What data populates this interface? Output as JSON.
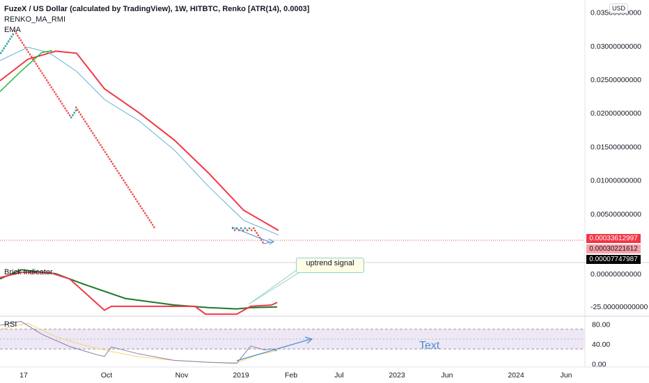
{
  "header": {
    "title": "FuzeX / US Dollar (calculated by TradingView), 1W, HITBTC, Renko [ATR(14), 0.0003]",
    "indicator_1": "RENKO_MA_RMI",
    "indicator_2": "EMA"
  },
  "currency_badge": "USD",
  "price_tags": [
    {
      "text": "0.00033612997",
      "bg": "#f23645",
      "fg": "#ffffff"
    },
    {
      "text": "0.00030221612",
      "bg": "#f7a1a8",
      "fg": "#131722"
    },
    {
      "text": "0.00007747987",
      "bg": "#000000",
      "fg": "#ffffff"
    }
  ],
  "annotations": {
    "callout_text": "uptrend signal",
    "text_note": "Text"
  },
  "panes": {
    "brick": {
      "label": "Brick Indicator"
    },
    "rsi": {
      "label": "RSI"
    }
  },
  "colors": {
    "renko_up": "#26a69a",
    "renko_down": "#ef5350",
    "ma_red": "#f23645",
    "ma_blue": "#5fb3d3",
    "ma_green": "#1db93b",
    "brick_green": "#1b7a2b",
    "brick_red": "#f23645",
    "rsi_purple": "#8c7aa9",
    "rsi_yellow": "#f5d76e",
    "rsi_band": "#ede7f6",
    "arrow": "#4a8fcf"
  },
  "chart_data": [
    {
      "type": "line",
      "name": "main-price",
      "title": "FuzeX / US Dollar (calculated by TradingView), 1W, HITBTC, Renko [ATR(14), 0.0003]",
      "y_ticks": [
        "0.03500000000",
        "0.03000000000",
        "0.02500000000",
        "0.02000000000",
        "0.01500000000",
        "0.01000000000",
        "0.00500000000"
      ],
      "y_tick_values": [
        0.035,
        0.03,
        0.025,
        0.02,
        0.015,
        0.01,
        0.005
      ],
      "ylim": [
        0.0,
        0.036
      ],
      "x_ticks": [
        "17",
        "Oct",
        "Nov",
        "2019",
        "Feb",
        "Jul",
        "2023",
        "Jun",
        "2024",
        "Jun"
      ],
      "renko": {
        "up_1": [
          0.0288,
          0.0321
        ],
        "down_1": [
          0.0321,
          0.0192
        ],
        "up_2": [
          0.0192,
          0.0207
        ],
        "down_2": [
          0.0207,
          0.0024
        ],
        "chop": [
          0.0024,
          0.0027
        ],
        "down_3": [
          0.0027,
          0.0003
        ]
      },
      "series": [
        {
          "points": [
            [
              0,
              0.0248
            ],
            [
              40,
              0.028
            ],
            [
              80,
              0.0292
            ],
            [
              110,
              0.0289
            ],
            [
              150,
              0.0236
            ],
            [
              200,
              0.02
            ],
            [
              250,
              0.016
            ],
            [
              300,
              0.011
            ],
            [
              350,
              0.0055
            ],
            [
              400,
              0.0025
            ]
          ]
        },
        {
          "points": [
            [
              0,
              0.0278
            ],
            [
              40,
              0.0298
            ],
            [
              70,
              0.029
            ],
            [
              110,
              0.0262
            ],
            [
              150,
              0.022
            ],
            [
              200,
              0.0188
            ],
            [
              250,
              0.0145
            ],
            [
              300,
              0.009
            ],
            [
              350,
              0.004
            ],
            [
              400,
              0.0018
            ]
          ]
        },
        {
          "points": [
            [
              0,
              0.0232
            ],
            [
              30,
              0.0262
            ],
            [
              60,
              0.029
            ],
            [
              75,
              0.0293
            ]
          ]
        }
      ]
    },
    {
      "type": "line",
      "name": "brick-indicator",
      "title": "Brick Indicator",
      "y_ticks": [
        "0.00000000000",
        "-25.00000000000"
      ],
      "y_tick_values": [
        0,
        -25
      ],
      "ylim": [
        -32,
        8
      ],
      "series": [
        {
          "points": [
            [
              0,
              -4
            ],
            [
              30,
              3
            ],
            [
              80,
              0
            ],
            [
              120,
              -8
            ],
            [
              180,
              -19
            ],
            [
              250,
              -24
            ],
            [
              300,
              -26
            ],
            [
              340,
              -27
            ],
            [
              360,
              -26
            ],
            [
              398,
              -25.5
            ]
          ]
        },
        {
          "points": [
            [
              0,
              -3
            ],
            [
              30,
              1
            ],
            [
              70,
              1
            ],
            [
              100,
              -4
            ],
            [
              150,
              -28
            ],
            [
              160,
              -25
            ],
            [
              280,
              -25
            ],
            [
              295,
              -31
            ],
            [
              340,
              -31
            ],
            [
              360,
              -25
            ],
            [
              390,
              -24
            ],
            [
              398,
              -22
            ]
          ]
        }
      ]
    },
    {
      "type": "line",
      "name": "rsi",
      "title": "RSI",
      "y_ticks": [
        "80.00",
        "40.00",
        "0.00"
      ],
      "y_tick_values": [
        80,
        40,
        0
      ],
      "ylim": [
        -5,
        95
      ],
      "band": [
        30,
        70
      ],
      "series": [
        {
          "points": [
            [
              0,
              78
            ],
            [
              30,
              86
            ],
            [
              60,
              60
            ],
            [
              100,
              35
            ],
            [
              140,
              18
            ],
            [
              150,
              15
            ],
            [
              160,
              34
            ],
            [
              200,
              20
            ],
            [
              250,
              7
            ],
            [
              300,
              3
            ],
            [
              340,
              1
            ],
            [
              360,
              36
            ],
            [
              380,
              28
            ],
            [
              390,
              30
            ],
            [
              398,
              26
            ]
          ]
        },
        {
          "points": [
            [
              0,
              70
            ],
            [
              40,
              82
            ],
            [
              80,
              55
            ],
            [
              120,
              38
            ],
            [
              160,
              25
            ],
            [
              200,
              14
            ],
            [
              250,
              7
            ],
            [
              300,
              3
            ],
            [
              340,
              2
            ],
            [
              370,
              18
            ],
            [
              398,
              27
            ]
          ]
        }
      ]
    }
  ]
}
